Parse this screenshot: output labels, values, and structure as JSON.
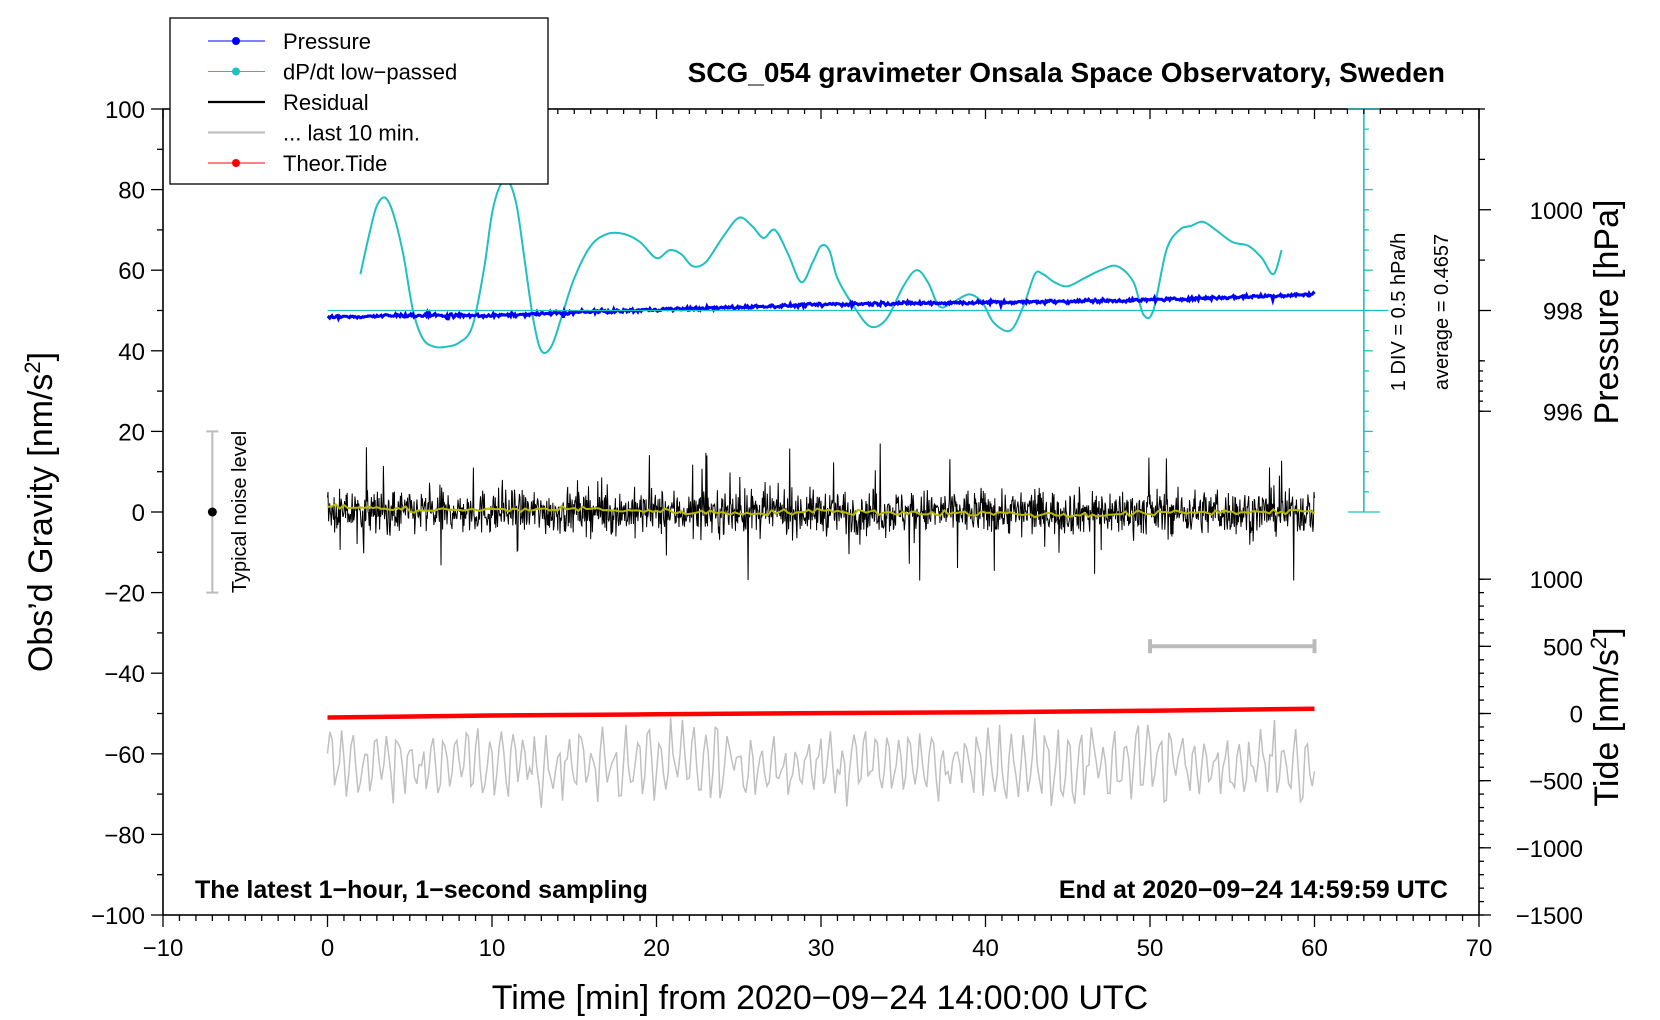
{
  "chart_data": {
    "type": "line",
    "title": "SCG_054 gravimeter Onsala Space Observatory, Sweden",
    "xlabel": "Time [min] from 2020−09−24 14:00:00 UTC",
    "ylabel_left_prefix": "Obs’d Gravity [nm/s",
    "ylabel_left_sup": "2",
    "ylabel_left_suffix": "]",
    "ylabel_right_pressure": "Pressure [hPa]",
    "ylabel_right_tide_prefix": "Tide [nm/s",
    "ylabel_right_tide_sup": "2",
    "ylabel_right_tide_suffix": "]",
    "xlim": [
      -10,
      70
    ],
    "ylim_left": [
      -100,
      100
    ],
    "x_ticks": [
      -10,
      0,
      10,
      20,
      30,
      40,
      50,
      60,
      70
    ],
    "x_tick_labels": [
      "−10",
      "0",
      "10",
      "20",
      "30",
      "40",
      "50",
      "60",
      "70"
    ],
    "y_ticks": [
      100,
      80,
      60,
      40,
      20,
      0,
      -20,
      -40,
      -60,
      -80,
      -100
    ],
    "y_tick_labels": [
      "100",
      "80",
      "60",
      "40",
      "20",
      "0",
      "−20",
      "−40",
      "−60",
      "−80",
      "−100"
    ],
    "pressure_axis": {
      "ticks_hpa": [
        1000,
        998,
        996
      ],
      "tick_labels": [
        "1000",
        "998",
        "996"
      ],
      "gravity_equiv": [
        75,
        50,
        25
      ]
    },
    "tide_axis": {
      "ticks_nms2": [
        1000,
        500,
        0,
        -500,
        -1000,
        -1500
      ],
      "tick_labels": [
        "1000",
        "500",
        "0",
        "−500",
        "−1000",
        "−1500"
      ],
      "gravity_equiv": [
        -16.67,
        -33.33,
        -50,
        -66.67,
        -83.33,
        -100
      ]
    },
    "notes": {
      "left": "The latest 1−hour, 1−second sampling",
      "right": "End at 2020−09−24 14:59:59 UTC",
      "noise_label": "Typical noise level",
      "div_label": "1 DIV = 0.5 hPa/h",
      "average_label": "average = 0.4657"
    },
    "noise_bar": {
      "x": -7,
      "center": 0,
      "half_range": 20
    },
    "ten_min_bar": {
      "x_start": 50,
      "x_end": 60,
      "y": -33.3
    },
    "dpdt_scale": {
      "x": 63,
      "y_top": 100,
      "y_bottom": 0,
      "divisions": 20,
      "baseline_y": 50
    },
    "legend": [
      {
        "label": "Pressure",
        "color": "#0000ff",
        "marker": true
      },
      {
        "label": "dP/dt low−passed",
        "color": "#20c0c0",
        "marker": true
      },
      {
        "label": "Residual",
        "color": "#000000",
        "marker": false
      },
      {
        "label": "... last 10 min.",
        "color": "#c0c0c0",
        "marker": false
      },
      {
        "label": "Theor.Tide",
        "color": "#ff0000",
        "marker": true
      }
    ],
    "series": [
      {
        "name": "Pressure",
        "color": "#0000ff",
        "style": "dots",
        "x": [
          0,
          5,
          10,
          15,
          20,
          25,
          30,
          35,
          40,
          45,
          50,
          55,
          60
        ],
        "y": [
          48.3,
          48.8,
          48.7,
          49.5,
          50.2,
          50.8,
          51.5,
          51.8,
          52.0,
          52.3,
          52.6,
          53.3,
          54.0
        ],
        "noise_amp": 0.5
      },
      {
        "name": "dP/dt low-passed",
        "color": "#20c0c0",
        "style": "line",
        "x": [
          2.0,
          2.6,
          3.0,
          3.5,
          4.0,
          4.6,
          5.2,
          5.8,
          6.5,
          7.2,
          8.0,
          8.8,
          9.5,
          10.0,
          10.5,
          11.0,
          11.5,
          12.0,
          12.5,
          13.0,
          13.6,
          14.2,
          15.0,
          16.0,
          17.0,
          18.0,
          19.0,
          20.0,
          20.8,
          21.5,
          22.2,
          23.0,
          24.0,
          25.0,
          25.8,
          26.5,
          27.2,
          28.0,
          28.8,
          29.5,
          30.0,
          30.5,
          31.0,
          32.0,
          33.0,
          34.0,
          35.0,
          35.8,
          36.5,
          37.2,
          38.0,
          39.0,
          39.8,
          40.5,
          41.5,
          42.3,
          43.0,
          43.5,
          44.2,
          45.0,
          46.0,
          47.0,
          48.0,
          49.0,
          49.6,
          50.2,
          51.0,
          51.8,
          52.5,
          53.2,
          54.0,
          55.0,
          56.0,
          56.8,
          57.5,
          58.0
        ],
        "y": [
          59,
          70,
          76,
          78,
          74,
          64,
          50,
          43,
          41,
          41,
          42,
          46,
          60,
          74,
          81,
          82,
          76,
          62,
          48,
          40,
          41,
          48,
          58,
          66,
          69,
          69,
          67,
          63,
          65,
          64,
          61,
          62,
          68,
          73,
          71,
          68,
          70,
          64,
          57,
          62,
          66,
          65,
          58,
          51,
          46,
          48,
          56,
          60,
          57,
          51,
          52,
          54,
          52,
          47,
          45,
          51,
          59,
          59,
          57,
          56,
          58,
          60,
          61,
          57,
          49,
          50,
          65,
          70,
          71,
          72,
          70,
          67,
          66,
          63,
          59,
          65
        ]
      },
      {
        "name": "Residual",
        "color": "#000000",
        "style": "noise",
        "x_start": 0,
        "x_end": 60,
        "center": 0,
        "amp_typical": 7,
        "amp_max": 17
      },
      {
        "name": "Residual smoothed",
        "color": "#b8b800",
        "style": "line",
        "x": [
          0,
          5,
          10,
          15,
          20,
          25,
          30,
          35,
          40,
          45,
          50,
          55,
          60
        ],
        "y": [
          1.5,
          0.5,
          0.5,
          0.8,
          0.2,
          -0.3,
          0.2,
          -0.2,
          -0.3,
          -0.8,
          -0.3,
          0.0,
          0.3
        ]
      },
      {
        "name": "... last 10 min.",
        "color": "#c0c0c0",
        "style": "oscillation",
        "x_start": 0,
        "x_end": 60,
        "center": -62.5,
        "amp": 8
      },
      {
        "name": "Theor.Tide",
        "color": "#ff0000",
        "style": "thick-line",
        "x": [
          0,
          10,
          20,
          30,
          40,
          50,
          60
        ],
        "y": [
          -51.0,
          -50.5,
          -50.2,
          -49.9,
          -49.7,
          -49.3,
          -48.8
        ]
      }
    ]
  }
}
